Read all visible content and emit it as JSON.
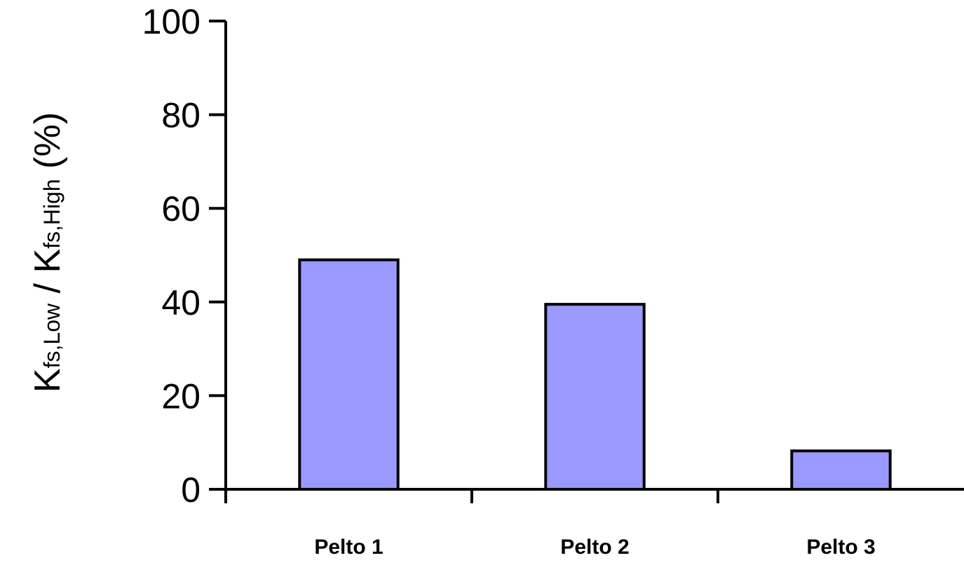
{
  "chart_data": {
    "type": "bar",
    "categories": [
      "Pelto 1",
      "Pelto 2",
      "Pelto 3"
    ],
    "values": [
      49,
      39.5,
      8.2
    ],
    "ylim": [
      0,
      100
    ],
    "yticks": [
      "0",
      "20",
      "40",
      "60",
      "80",
      "100"
    ],
    "ylabel": {
      "k1": "K",
      "sub1": "fs,Low",
      "sep": " / ",
      "k2": "K",
      "sub2": "fs,High",
      "unit": " (%)"
    },
    "bar_color": "#9999ff",
    "edge_color": "#000000",
    "grid": false,
    "legend": "none"
  }
}
